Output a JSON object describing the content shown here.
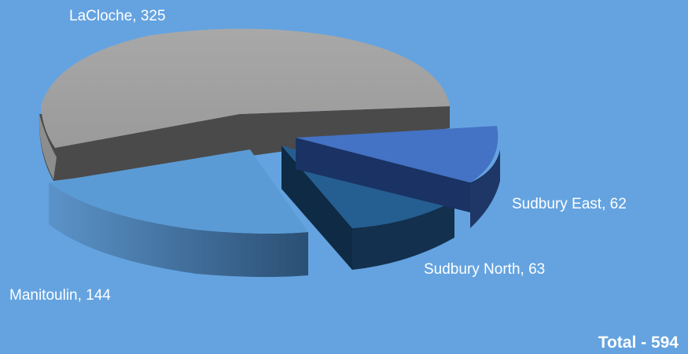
{
  "chart_data": {
    "type": "pie",
    "style": "3d-exploded",
    "slices": [
      {
        "label": "LaCloche",
        "value": 325,
        "display": "LaCloche, 325",
        "color": "#a3a3a3",
        "side_color": "#4a4a4a"
      },
      {
        "label": "Sudbury East",
        "value": 62,
        "display": "Sudbury East, 62",
        "color": "#4472c4",
        "side_color": "#1f3766"
      },
      {
        "label": "Sudbury North",
        "value": 63,
        "display": "Sudbury North, 63",
        "color": "#255e91",
        "side_color": "#102a44"
      },
      {
        "label": "Manitoulin",
        "value": 144,
        "display": "Manitoulin, 144",
        "color": "#5b9bd5",
        "side_color": "#3f6f9c"
      }
    ],
    "total_text": "Total - 594",
    "background_color": "#64a3e0",
    "legend": "none"
  }
}
